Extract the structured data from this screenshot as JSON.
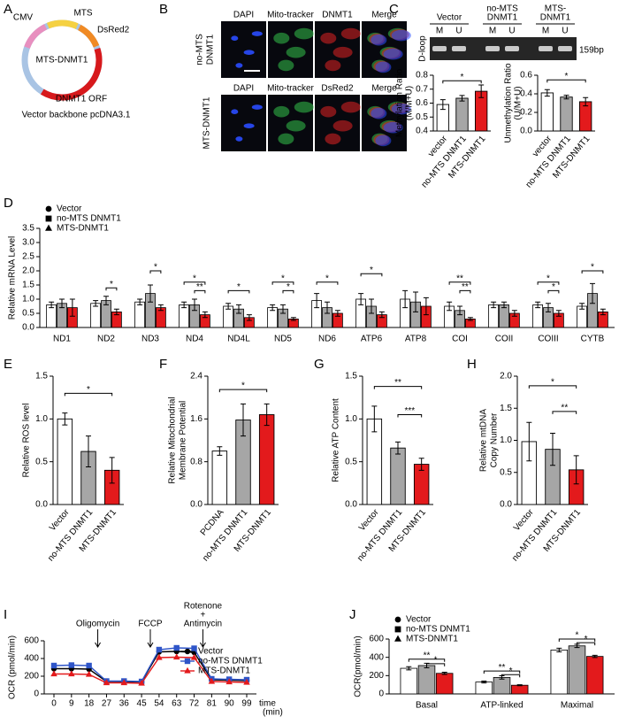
{
  "plasmid": {
    "label": "A",
    "segments": [
      "CMV",
      "MTS",
      "DsRed2",
      "DNMT1 ORF"
    ],
    "center": "MTS-DNMT1",
    "caption": "Vector backbone pcDNA3.1"
  },
  "microscopy": {
    "label": "B",
    "rows": [
      {
        "name": [
          "no-MTS",
          "DNMT1"
        ],
        "columns": [
          "DAPI",
          "Mito-tracker",
          "DNMT1",
          "Merge"
        ]
      },
      {
        "name": [
          "MTS-DNMT1"
        ],
        "columns": [
          "DAPI",
          "Mito-tracker",
          "DsRed2",
          "Merge"
        ]
      }
    ]
  },
  "gel": {
    "label": "C",
    "lanes": [
      [
        "Vector"
      ],
      [
        "no-MTS",
        "DNMT1"
      ],
      [
        "MTS-",
        "DNMT1"
      ]
    ],
    "sublanes": [
      "M",
      "U",
      "M",
      "U",
      "M",
      "U"
    ],
    "band": "D-loop",
    "size": "159bp"
  },
  "chart_data": [
    {
      "type": "bar",
      "ylabel": [
        "Methylation Ratio",
        "(M/M+U)"
      ],
      "categories": [
        "vector",
        "no-MTS DNMT1",
        "MTS-DNMT1"
      ],
      "values": [
        0.59,
        0.635,
        0.685
      ],
      "errors": [
        0.035,
        0.02,
        0.045
      ],
      "colors": [
        "#ffffff",
        "#a6a6a6",
        "#e31a1c"
      ],
      "ylim": [
        0.4,
        0.8
      ],
      "yticks": [
        0.4,
        0.5,
        0.6,
        0.7,
        0.8
      ],
      "annotations": [
        "*"
      ]
    },
    {
      "type": "bar",
      "ylabel": [
        "Unmethylation Ratio",
        "(U/M+U)"
      ],
      "categories": [
        "vector",
        "no-MTS DNMT1",
        "MTS-DNMT1"
      ],
      "values": [
        0.41,
        0.365,
        0.315
      ],
      "errors": [
        0.035,
        0.02,
        0.045
      ],
      "colors": [
        "#ffffff",
        "#a6a6a6",
        "#e31a1c"
      ],
      "ylim": [
        0,
        0.6
      ],
      "yticks": [
        {
          "value": 0,
          "label": "0.0"
        },
        0.2,
        0.4,
        0.6
      ],
      "annotations": [
        "*"
      ]
    },
    {
      "type": "bar",
      "label": "D",
      "ylabel": "Relative mRNA Level",
      "categories": [
        "ND1",
        "ND2",
        "ND3",
        "ND4",
        "ND4L",
        "ND5",
        "ND6",
        "ATP6",
        "ATP8",
        "COI",
        "COII",
        "COIII",
        "CYTB"
      ],
      "series": [
        {
          "name": "Vector",
          "color": "#ffffff",
          "marker": "circle",
          "values": [
            0.8,
            0.85,
            0.9,
            0.8,
            0.75,
            0.7,
            0.95,
            1.0,
            1.0,
            0.75,
            0.8,
            0.8,
            0.75
          ],
          "errors": [
            0.1,
            0.1,
            0.1,
            0.1,
            0.1,
            0.1,
            0.25,
            0.2,
            0.3,
            0.15,
            0.1,
            0.1,
            0.1
          ]
        },
        {
          "name": "no-MTS DNMT1",
          "color": "#a6a6a6",
          "marker": "square",
          "values": [
            0.85,
            0.95,
            1.2,
            0.8,
            0.65,
            0.65,
            0.7,
            0.75,
            0.9,
            0.6,
            0.8,
            0.7,
            1.2
          ],
          "errors": [
            0.15,
            0.15,
            0.3,
            0.2,
            0.15,
            0.15,
            0.2,
            0.25,
            0.35,
            0.15,
            0.1,
            0.15,
            0.35
          ]
        },
        {
          "name": "MTS-DNMT1",
          "color": "#e31a1c",
          "marker": "triangle",
          "values": [
            0.7,
            0.55,
            0.7,
            0.45,
            0.35,
            0.3,
            0.5,
            0.45,
            0.75,
            0.3,
            0.5,
            0.5,
            0.55
          ],
          "errors": [
            0.3,
            0.1,
            0.1,
            0.1,
            0.1,
            0.05,
            0.1,
            0.1,
            0.3,
            0.05,
            0.1,
            0.1,
            0.1
          ]
        }
      ],
      "ylim": [
        0,
        3.5
      ],
      "yticks": [
        {
          "value": 0,
          "label": "0.0"
        },
        0.5,
        {
          "value": 1,
          "label": "1.0"
        },
        1.5,
        {
          "value": 2,
          "label": "2.0"
        },
        2.5,
        {
          "value": 3,
          "label": "3.0"
        },
        3.5
      ],
      "annotations": [
        "*",
        "*",
        "*",
        "**",
        "*",
        "*",
        "*",
        "*",
        "*",
        "**",
        "**",
        "*",
        "*",
        "*"
      ]
    },
    {
      "type": "bar",
      "label": "E",
      "ylabel": "Relative ROS level",
      "categories": [
        "Vector",
        "no-MTS DNMT1",
        "MTS-DNMT1"
      ],
      "values": [
        1.0,
        0.62,
        0.4
      ],
      "errors": [
        0.07,
        0.18,
        0.15
      ],
      "colors": [
        "#ffffff",
        "#a6a6a6",
        "#e31a1c"
      ],
      "ylim": [
        0,
        1.5
      ],
      "yticks": [
        {
          "value": 0,
          "label": "0.0"
        },
        0.5,
        {
          "value": 1,
          "label": "1.0"
        },
        1.5
      ],
      "annotations": [
        "*"
      ]
    },
    {
      "type": "bar",
      "label": "F",
      "ylabel": [
        "Relative Mitochondrial",
        "Membrane Potential"
      ],
      "categories": [
        "PCDNA",
        "no-MTS DNMT1",
        "MTS-DNMT1"
      ],
      "values": [
        1.0,
        1.58,
        1.68
      ],
      "errors": [
        0.08,
        0.3,
        0.2
      ],
      "colors": [
        "#ffffff",
        "#a6a6a6",
        "#e31a1c"
      ],
      "ylim": [
        0,
        2.4
      ],
      "yticks": [
        {
          "value": 0,
          "label": "0.0"
        },
        0.8,
        1.6,
        2.4
      ],
      "annotations": [
        "*"
      ]
    },
    {
      "type": "bar",
      "label": "G",
      "ylabel": "Relative ATP Content",
      "categories": [
        "Vector",
        "no-MTS DNMT1",
        "MTS-DNMT1"
      ],
      "values": [
        1.0,
        0.66,
        0.47
      ],
      "errors": [
        0.15,
        0.07,
        0.07
      ],
      "colors": [
        "#ffffff",
        "#a6a6a6",
        "#e31a1c"
      ],
      "ylim": [
        0,
        1.5
      ],
      "yticks": [
        {
          "value": 0,
          "label": "0.0"
        },
        0.5,
        {
          "value": 1,
          "label": "1.0"
        },
        1.5
      ],
      "annotations": [
        "**",
        "***"
      ]
    },
    {
      "type": "bar",
      "label": "H",
      "ylabel": [
        "Relative mtDNA",
        "Copy Number"
      ],
      "categories": [
        "Vector",
        "no-MTS DNMT1",
        "MTS-DNMT1"
      ],
      "values": [
        0.98,
        0.86,
        0.54
      ],
      "errors": [
        0.3,
        0.25,
        0.22
      ],
      "colors": [
        "#ffffff",
        "#a6a6a6",
        "#e31a1c"
      ],
      "ylim": [
        0,
        2.0
      ],
      "yticks": [
        {
          "value": 0,
          "label": "0.0"
        },
        0.5,
        {
          "value": 1,
          "label": "1.0"
        },
        1.5,
        {
          "value": 2,
          "label": "2.0"
        }
      ],
      "annotations": [
        "*",
        "**"
      ]
    },
    {
      "type": "line",
      "label": "I",
      "ylabel": "OCR (pmol/min)",
      "xlabel": [
        "time",
        "(min)"
      ],
      "x": [
        0,
        9,
        18,
        27,
        36,
        45,
        54,
        63,
        72,
        81,
        90,
        99
      ],
      "series": [
        {
          "name": "Vector",
          "color": "#000000",
          "marker": "circle",
          "values": [
            285,
            285,
            280,
            140,
            138,
            135,
            475,
            480,
            470,
            160,
            155,
            150
          ]
        },
        {
          "name": "no-MTS DNMT1",
          "color": "#2f55c8",
          "marker": "square",
          "values": [
            320,
            325,
            320,
            145,
            145,
            140,
            500,
            520,
            515,
            170,
            165,
            160
          ]
        },
        {
          "name": "MTS-DNMT1",
          "color": "#e31a1c",
          "marker": "triangle",
          "values": [
            225,
            225,
            220,
            125,
            125,
            120,
            410,
            415,
            410,
            140,
            135,
            130
          ]
        }
      ],
      "xlim": [
        -5,
        104
      ],
      "xticks": [
        0,
        9,
        18,
        27,
        36,
        45,
        54,
        63,
        72,
        81,
        90,
        99
      ],
      "ylim": [
        0,
        600
      ],
      "yticks": [
        0,
        200,
        400,
        600
      ],
      "annotations": [
        [
          "Oligomycin"
        ],
        [
          "FCCP"
        ],
        [
          "Rotenone",
          "+",
          "Antimycin"
        ]
      ]
    },
    {
      "type": "bar",
      "label": "J",
      "ylabel": "OCR(pmol/min)",
      "categories": [
        "Basal",
        "ATP-linked",
        "Maximal"
      ],
      "series": [
        {
          "name": "Vector",
          "color": "#ffffff",
          "marker": "circle",
          "values": [
            280,
            130,
            480
          ],
          "errors": [
            18,
            10,
            20
          ]
        },
        {
          "name": "no-MTS DNMT1",
          "color": "#a6a6a6",
          "marker": "square",
          "values": [
            310,
            180,
            525
          ],
          "errors": [
            25,
            18,
            18
          ]
        },
        {
          "name": "MTS-DNMT1",
          "color": "#e31a1c",
          "marker": "triangle",
          "values": [
            225,
            95,
            410
          ],
          "errors": [
            12,
            6,
            12
          ]
        }
      ],
      "ylim": [
        0,
        600
      ],
      "yticks": [
        0,
        200,
        400,
        600
      ],
      "annotations": [
        "**",
        "*",
        "**",
        "*",
        "*",
        "*"
      ]
    }
  ]
}
